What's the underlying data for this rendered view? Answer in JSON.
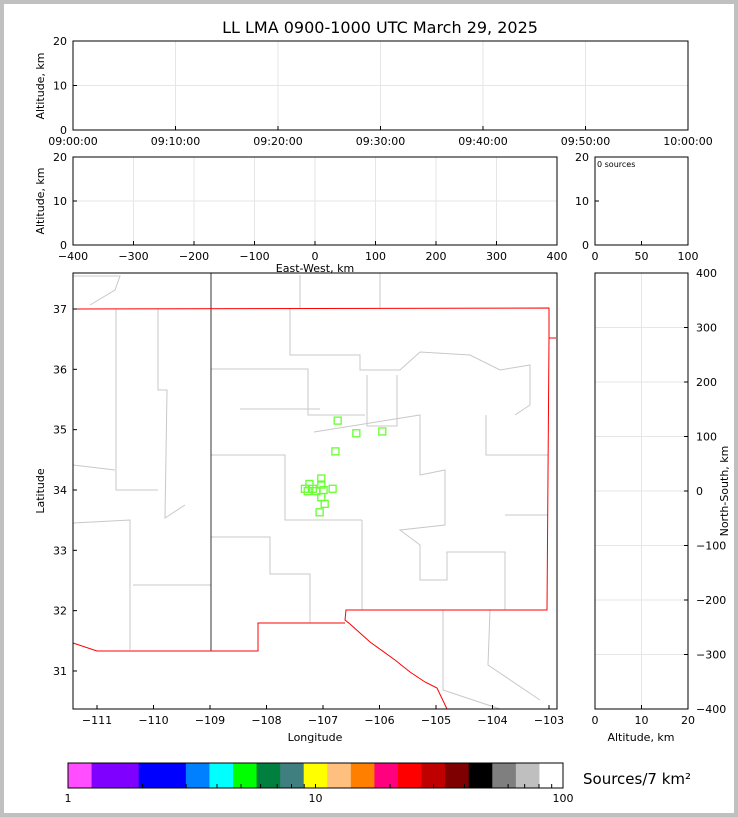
{
  "chart_data": [
    {
      "type": "scatter",
      "panel": "altitude-vs-time",
      "title": "LL LMA 0900-1000 UTC March 29, 2025",
      "ylabel": "Altitude, km",
      "ylim": [
        0,
        20
      ],
      "yticks": [
        "0",
        "10",
        "20"
      ],
      "xticks": [
        "09:00:00",
        "09:10:00",
        "09:20:00",
        "09:30:00",
        "09:40:00",
        "09:50:00",
        "10:00:00"
      ],
      "grid": true,
      "points": []
    },
    {
      "type": "scatter",
      "panel": "altitude-vs-east-west",
      "ylabel": "Altitude, km",
      "xlabel": "East-West, km",
      "xlim": [
        -400,
        400
      ],
      "ylim": [
        0,
        20
      ],
      "xticks": [
        "−400",
        "−300",
        "−200",
        "−100",
        "0",
        "100",
        "200",
        "300",
        "400"
      ],
      "yticks": [
        "0",
        "10",
        "20"
      ],
      "grid": true,
      "points": []
    },
    {
      "type": "histogram",
      "panel": "source-count",
      "annotation": "0 sources",
      "xlim": [
        0,
        100
      ],
      "ylim": [
        0,
        20
      ],
      "xticks": [
        "0",
        "50",
        "100"
      ],
      "yticks": [
        "0",
        "10",
        "20"
      ]
    },
    {
      "type": "scatter",
      "panel": "plan-view",
      "xlabel": "Longitude",
      "ylabel": "Latitude",
      "xlim": [
        -111.42,
        -102.86
      ],
      "ylim": [
        30.37,
        37.6
      ],
      "xticks": [
        "−111",
        "−110",
        "−109",
        "−108",
        "−107",
        "−106",
        "−105",
        "−104",
        "−103"
      ],
      "yticks": [
        "31",
        "32",
        "33",
        "34",
        "35",
        "36",
        "37"
      ],
      "marker_color": "#66ff33",
      "marker": "open-square",
      "lon": [
        -106.74,
        -106.41,
        -105.95,
        -106.78,
        -107.03,
        -107.24,
        -107.03,
        -107.32,
        -107.18,
        -107.12,
        -106.99,
        -106.83,
        -107.27,
        -107.03,
        -106.97,
        -107.06
      ],
      "lat": [
        35.15,
        34.94,
        34.97,
        34.64,
        34.19,
        34.1,
        34.09,
        34.02,
        34.02,
        33.98,
        34.0,
        34.02,
        33.98,
        33.88,
        33.77,
        33.63
      ]
    },
    {
      "type": "scatter",
      "panel": "north-south-vs-altitude",
      "xlabel": "Altitude, km",
      "ylabel": "North-South, km",
      "xlim": [
        0,
        20
      ],
      "ylim": [
        -400,
        400
      ],
      "xticks": [
        "0",
        "10",
        "20"
      ],
      "yticks": [
        "−400",
        "−300",
        "−200",
        "−100",
        "0",
        "100",
        "200",
        "300",
        "400"
      ],
      "grid": true,
      "points": []
    },
    {
      "type": "colorbar",
      "label": "Sources/7 km²",
      "scale": "log",
      "range": [
        1,
        100
      ],
      "ticklabels": [
        "1",
        "10",
        "100"
      ],
      "colors": [
        "#ff4dff",
        "#7f00ff",
        "#7f00ff",
        "#0000ff",
        "#0000ff",
        "#007fff",
        "#00ffff",
        "#00ff00",
        "#007f3f",
        "#3f7f7f",
        "#ffff00",
        "#ffbf7f",
        "#ff7f00",
        "#ff007f",
        "#ff0000",
        "#bf0000",
        "#7f0000",
        "#000000",
        "#7f7f7f",
        "#bfbfbf",
        "#ffffff"
      ]
    }
  ]
}
